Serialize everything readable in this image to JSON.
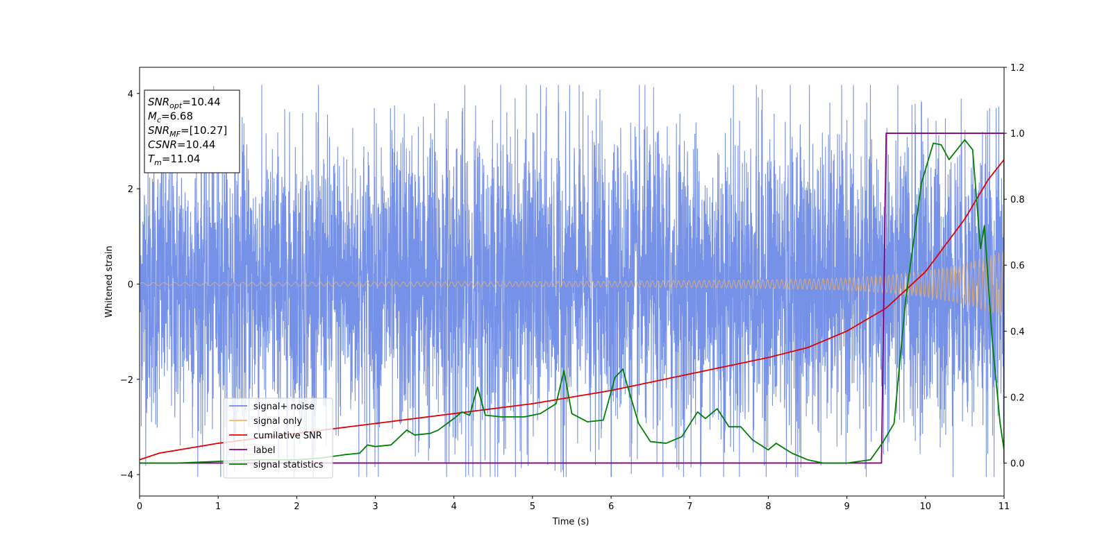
{
  "chart_data": {
    "type": "line",
    "title": "",
    "xlabel": "Time (s)",
    "ylabel": "Whitened strain",
    "xlim": [
      0,
      11
    ],
    "ylim_left": [
      -4.45,
      4.55
    ],
    "ylim_right": [
      -0.1,
      1.2
    ],
    "x_ticks": [
      "0",
      "1",
      "2",
      "3",
      "4",
      "5",
      "6",
      "7",
      "8",
      "9",
      "10",
      "11"
    ],
    "y_left_ticks": [
      "4",
      "2",
      "0",
      "−2",
      "−4"
    ],
    "y_right_ticks": [
      "1.2",
      "1.0",
      "0.8",
      "0.6",
      "0.4",
      "0.2",
      "0.0"
    ],
    "legend_position": "lower-left",
    "series": [
      {
        "name": "signal+ noise",
        "axis": "left",
        "color": "#6a88e6",
        "kind": "noise-band",
        "envelope_x": [
          0,
          1,
          2,
          3,
          4,
          5,
          6,
          7,
          8,
          9,
          9.5,
          10,
          10.5,
          11
        ],
        "envelope_y": [
          2.9,
          3.0,
          3.0,
          3.1,
          3.4,
          3.2,
          3.1,
          3.2,
          3.3,
          3.0,
          3.1,
          3.2,
          3.0,
          3.0
        ],
        "min_y": -4.05,
        "max_y": 4.18
      },
      {
        "name": "signal only",
        "axis": "left",
        "color": "#f5b461",
        "kind": "chirp",
        "x": [
          0,
          2,
          4,
          6,
          8,
          9,
          9.5,
          10,
          10.5,
          11
        ],
        "amplitude": [
          0.03,
          0.04,
          0.05,
          0.06,
          0.09,
          0.13,
          0.18,
          0.27,
          0.42,
          0.68
        ]
      },
      {
        "name": "cumilative SNR",
        "axis": "right",
        "color": "#e00000",
        "x": [
          0,
          0.25,
          0.5,
          1,
          2,
          3,
          4,
          5,
          6,
          7,
          8,
          8.5,
          9,
          9.5,
          10,
          10.5,
          10.8,
          11
        ],
        "y": [
          0.01,
          0.03,
          0.04,
          0.06,
          0.09,
          0.12,
          0.15,
          0.18,
          0.22,
          0.27,
          0.32,
          0.35,
          0.4,
          0.47,
          0.58,
          0.74,
          0.86,
          0.92
        ]
      },
      {
        "name": "label",
        "axis": "right",
        "color": "#800080",
        "x": [
          0,
          9.44,
          9.5,
          11,
          11
        ],
        "y": [
          0,
          0,
          1,
          1,
          0
        ]
      },
      {
        "name": "signal statistics",
        "axis": "right",
        "color": "#008000",
        "x": [
          0,
          0.5,
          1,
          1.5,
          2,
          2.3,
          2.6,
          2.8,
          2.9,
          3.0,
          3.2,
          3.4,
          3.5,
          3.7,
          3.8,
          4.0,
          4.1,
          4.2,
          4.3,
          4.4,
          4.6,
          4.8,
          4.9,
          5.1,
          5.3,
          5.4,
          5.5,
          5.7,
          5.9,
          6.05,
          6.15,
          6.2,
          6.35,
          6.5,
          6.7,
          6.9,
          7.1,
          7.2,
          7.35,
          7.5,
          7.65,
          7.8,
          8.0,
          8.1,
          8.3,
          8.5,
          8.7,
          9.0,
          9.3,
          9.45,
          9.6,
          9.75,
          9.95,
          10.1,
          10.2,
          10.3,
          10.5,
          10.6,
          10.7,
          10.75,
          10.85,
          10.95,
          11
        ],
        "y": [
          0,
          0,
          0.005,
          0.01,
          0.01,
          0.015,
          0.025,
          0.03,
          0.055,
          0.05,
          0.055,
          0.1,
          0.085,
          0.09,
          0.1,
          0.135,
          0.155,
          0.145,
          0.23,
          0.145,
          0.14,
          0.14,
          0.14,
          0.15,
          0.18,
          0.28,
          0.15,
          0.125,
          0.13,
          0.26,
          0.285,
          0.24,
          0.12,
          0.065,
          0.06,
          0.08,
          0.155,
          0.135,
          0.165,
          0.11,
          0.11,
          0.07,
          0.04,
          0.06,
          0.03,
          0.01,
          0.0,
          0.0,
          0.01,
          0.06,
          0.12,
          0.5,
          0.85,
          0.97,
          0.965,
          0.92,
          0.98,
          0.95,
          0.65,
          0.72,
          0.37,
          0.12,
          0.04
        ]
      }
    ],
    "annotation": {
      "lines": [
        {
          "var": "SNR",
          "sub": "opt",
          "value": "=10.44"
        },
        {
          "var": "M",
          "sub": "c",
          "value": "=6.68"
        },
        {
          "var": "SNR",
          "sub": "MF",
          "value": "=[10.27]"
        },
        {
          "var": "CSNR",
          "sub": "",
          "value": "=10.44"
        },
        {
          "var": "T",
          "sub": "m",
          "value": "=11.04"
        }
      ]
    }
  }
}
